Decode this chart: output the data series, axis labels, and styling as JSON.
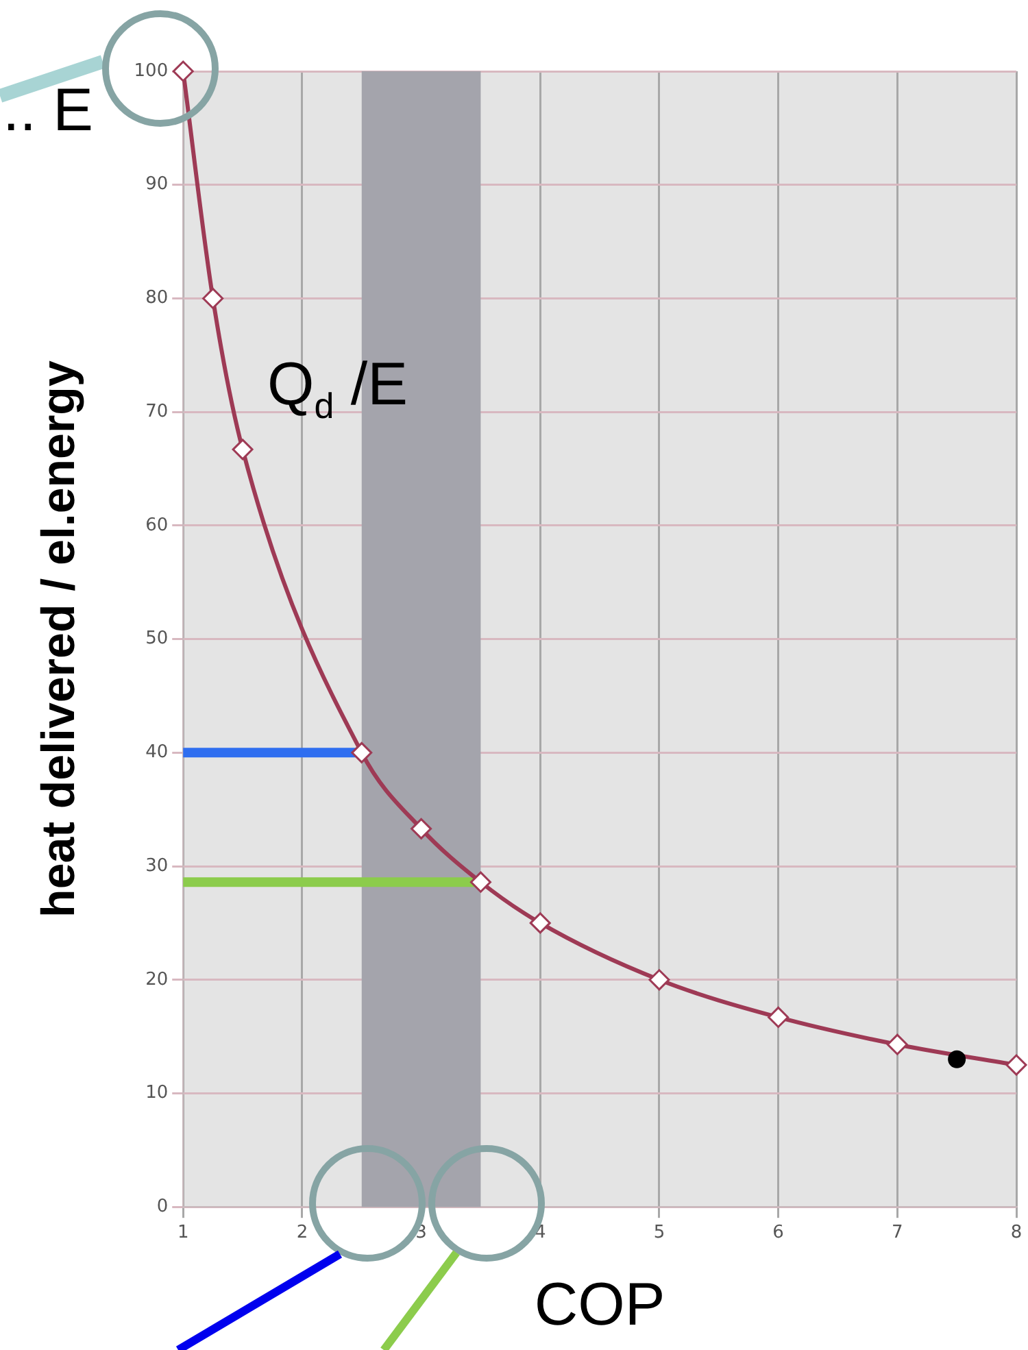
{
  "chart_data": {
    "type": "line",
    "xlabel": "COP",
    "ylabel": "heat delivered / el.energy",
    "xlim": [
      1,
      8
    ],
    "xticks": [
      1,
      2,
      3,
      4,
      5,
      6,
      7,
      8
    ],
    "ylim": [
      0,
      100
    ],
    "yticks": [
      0,
      10,
      20,
      30,
      40,
      50,
      60,
      70,
      80,
      90,
      100
    ],
    "grid": true,
    "marker": "diamond",
    "line_style": "solid",
    "series": [
      {
        "color": "#9e3a55",
        "x": [
          1,
          1.25,
          1.5,
          2.5,
          3,
          3.5,
          4,
          5,
          6,
          7,
          8
        ],
        "values": [
          100,
          80,
          66.7,
          40,
          33.3,
          28.6,
          25,
          20,
          16.7,
          14.3,
          12.5
        ]
      },
      {
        "type": "scatter",
        "marker": "circle",
        "color": "#000000",
        "x": [
          7.5
        ],
        "values": [
          13
        ]
      },
      {
        "color": "#2f6ef0",
        "marker": "none",
        "x": [
          1,
          2.5
        ],
        "values": [
          40,
          40
        ]
      },
      {
        "color": "#8ccc4c",
        "marker": "none",
        "x": [
          1,
          3.5
        ],
        "values": [
          28.6,
          28.6
        ]
      }
    ],
    "bands": [
      {
        "axis": "x",
        "from": 2.5,
        "to": 3.5,
        "color": "#a4a4ac"
      }
    ],
    "annotations": [
      "Q$_{d}$ /E",
      ".. E"
    ]
  }
}
